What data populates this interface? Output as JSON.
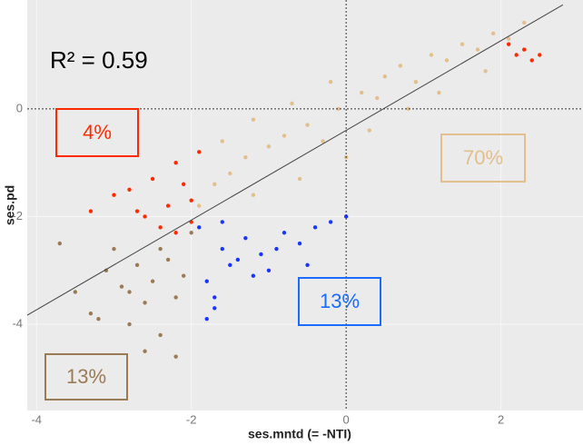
{
  "chart_data": {
    "type": "scatter",
    "x_label": "ses.mntd (= -NTI)",
    "y_label": "ses.pd",
    "xlim": [
      -4.12,
      3.06
    ],
    "ylim": [
      -5.6,
      2.02
    ],
    "xticks": [
      -4,
      -2,
      0,
      2
    ],
    "yticks": [
      -4,
      -2,
      0
    ],
    "reference_lines": {
      "x": 0,
      "y": 0
    },
    "regression_line": {
      "x": [
        -4.12,
        2.8
      ],
      "y": [
        -3.83,
        1.93
      ]
    },
    "r2_label": "R² = 0.59",
    "series": [
      {
        "color": "#e2bf8c",
        "x": [
          -1.9,
          -1.7,
          -1.5,
          -1.3,
          -1.2,
          -1.0,
          -0.8,
          -0.6,
          -0.5,
          -0.3,
          -0.1,
          0.0,
          0.2,
          0.4,
          0.5,
          0.7,
          0.9,
          1.1,
          1.3,
          1.5,
          1.7,
          1.9,
          2.1,
          2.3,
          -1.6,
          -1.2,
          -0.7,
          -0.2,
          0.3,
          0.8,
          1.2,
          1.8
        ],
        "values": [
          -1.8,
          -1.4,
          -1.2,
          -0.9,
          -1.6,
          -0.7,
          -0.5,
          -1.3,
          -0.3,
          -0.6,
          0.0,
          -0.9,
          0.3,
          0.2,
          0.6,
          0.8,
          0.5,
          1.0,
          0.9,
          1.2,
          1.1,
          1.4,
          1.3,
          1.6,
          -0.6,
          -0.2,
          0.1,
          0.5,
          -0.4,
          0.0,
          0.3,
          0.7
        ]
      },
      {
        "color": "#ff2a00",
        "x": [
          -3.3,
          -3.0,
          -2.8,
          -2.6,
          -2.5,
          -2.3,
          -2.2,
          -2.1,
          -2.0,
          -1.9,
          -2.4,
          -2.2,
          -2.0,
          -2.7,
          2.1,
          2.2,
          2.3,
          2.4,
          2.5
        ],
        "values": [
          -1.9,
          -1.6,
          -1.5,
          -2.0,
          -1.3,
          -1.8,
          -1.0,
          -1.4,
          -2.1,
          -0.8,
          -2.2,
          -2.3,
          -1.7,
          -1.9,
          1.2,
          1.0,
          1.1,
          0.9,
          1.0
        ]
      },
      {
        "color": "#1a35ff",
        "x": [
          -1.9,
          -1.8,
          -1.7,
          -1.6,
          -1.5,
          -1.3,
          -1.1,
          -1.0,
          -0.8,
          -0.6,
          -0.4,
          -0.2,
          0.0,
          -1.8,
          -1.7,
          -1.4,
          -1.2,
          -0.9,
          -0.5,
          -1.6
        ],
        "values": [
          -2.2,
          -3.2,
          -3.7,
          -2.6,
          -2.9,
          -2.4,
          -2.7,
          -3.0,
          -2.3,
          -2.5,
          -2.2,
          -2.1,
          -2.0,
          -3.9,
          -3.5,
          -2.8,
          -3.1,
          -2.6,
          -2.9,
          -2.1
        ]
      },
      {
        "color": "#9a7b55",
        "x": [
          -3.7,
          -3.5,
          -3.3,
          -3.1,
          -3.0,
          -2.9,
          -2.8,
          -2.7,
          -2.6,
          -2.5,
          -2.4,
          -2.3,
          -2.2,
          -2.1,
          -2.0,
          -2.6,
          -2.4,
          -3.2,
          -2.8,
          -2.2
        ],
        "values": [
          -2.5,
          -3.4,
          -3.8,
          -3.0,
          -2.6,
          -3.3,
          -4.0,
          -2.9,
          -3.6,
          -3.2,
          -4.2,
          -2.8,
          -3.5,
          -3.1,
          -2.3,
          -4.5,
          -2.6,
          -3.9,
          -3.4,
          -4.6
        ]
      }
    ],
    "annotations": [
      {
        "text": "4%",
        "color": "#ff2a00"
      },
      {
        "text": "70%",
        "color": "#e2bf8c"
      },
      {
        "text": "13%",
        "color": "#1a6bff"
      },
      {
        "text": "13%",
        "color": "#9a7b55"
      }
    ]
  }
}
